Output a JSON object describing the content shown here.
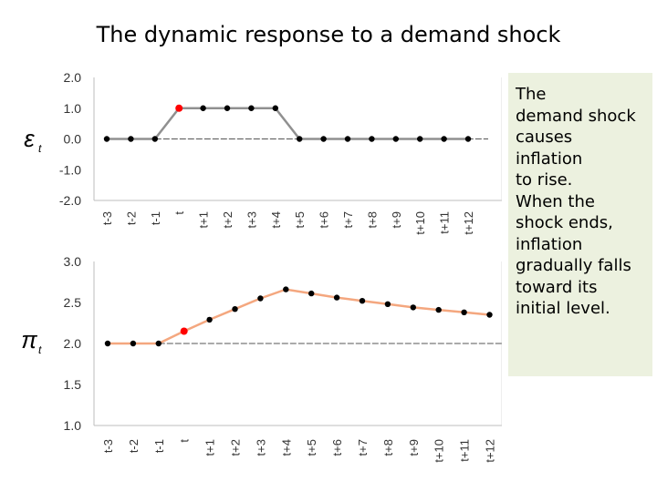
{
  "slide": {
    "title": "The dynamic response to a demand shock",
    "note": "The\ndemand shock\ncauses\ninflation\nto rise.\nWhen the\nshock ends,\ninflation\ngradually falls\ntoward its\ninitial level."
  },
  "chart_data": [
    {
      "type": "line",
      "title": "",
      "ylabel": "ε_t",
      "categories": [
        "t-3",
        "t-2",
        "t-1",
        "t",
        "t+1",
        "t+2",
        "t+3",
        "t+4",
        "t+5",
        "t+6",
        "t+7",
        "t+8",
        "t+9",
        "t+10",
        "t+11",
        "t+12"
      ],
      "values": [
        0,
        0,
        0,
        1,
        1,
        1,
        1,
        1,
        0,
        0,
        0,
        0,
        0,
        0,
        0,
        0
      ],
      "baseline": 0,
      "highlight_index": 3,
      "ylim": [
        -2,
        2
      ],
      "yticks": [
        "2.0",
        "1.0",
        "0.0",
        "-1.0",
        "-2.0"
      ],
      "line_color": "#909090",
      "marker_color": "#000000",
      "highlight_color": "#ff0000",
      "grid": false
    },
    {
      "type": "line",
      "title": "",
      "ylabel": "π_t",
      "categories": [
        "t-3",
        "t-2",
        "t-1",
        "t",
        "t+1",
        "t+2",
        "t+3",
        "t+4",
        "t+5",
        "t+6",
        "t+7",
        "t+8",
        "t+9",
        "t+10",
        "t+11",
        "t+12"
      ],
      "values": [
        2.0,
        2.0,
        2.0,
        2.15,
        2.29,
        2.42,
        2.55,
        2.66,
        2.61,
        2.56,
        2.52,
        2.48,
        2.44,
        2.41,
        2.38,
        2.35
      ],
      "baseline": 2.0,
      "highlight_index": 3,
      "ylim": [
        1.0,
        3.0
      ],
      "yticks": [
        "3.0",
        "2.5",
        "2.0",
        "1.5",
        "1.0"
      ],
      "line_color": "#f4a77f",
      "marker_color": "#000000",
      "highlight_color": "#ff0000",
      "grid": false
    }
  ]
}
